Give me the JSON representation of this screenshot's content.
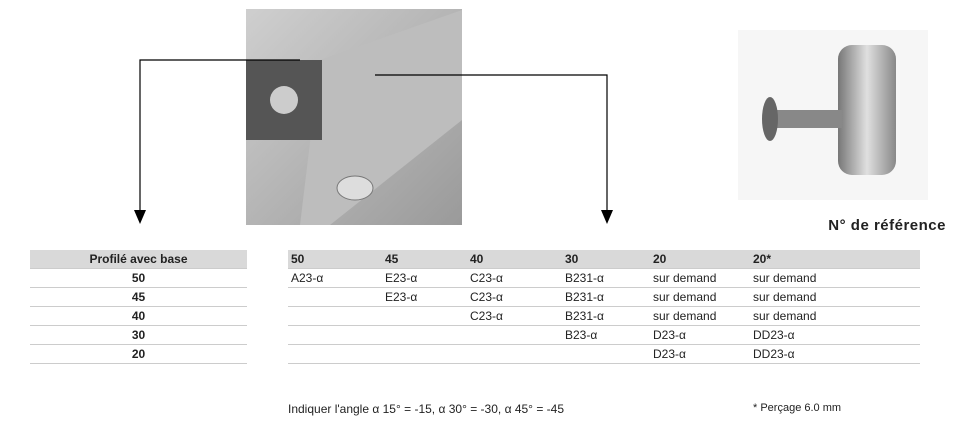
{
  "heading": "N° de référence",
  "left_table": {
    "header": "Profilé avec base",
    "rows": [
      50,
      45,
      40,
      30,
      20
    ]
  },
  "right_table": {
    "header": [
      50,
      45,
      40,
      30,
      20,
      "20*"
    ],
    "rows": [
      [
        "A23-α",
        "E23-α",
        "C23-α",
        "B231-α",
        "sur demand",
        "sur demand"
      ],
      [
        null,
        "E23-α",
        "C23-α",
        "B231-α",
        "sur demand",
        "sur demand"
      ],
      [
        null,
        null,
        "C23-α",
        "B231-α",
        "sur demand",
        "sur demand"
      ],
      [
        null,
        null,
        null,
        "B23-α",
        "D23-α",
        "DD23-α"
      ],
      [
        null,
        null,
        null,
        null,
        "D23-α",
        "DD23-α"
      ]
    ]
  },
  "notes": {
    "angle": "Indiquer l'angle α 15° = -15, α 30° = -30, α 45° = -45",
    "drilling": "* Perçage 6.0 mm"
  }
}
